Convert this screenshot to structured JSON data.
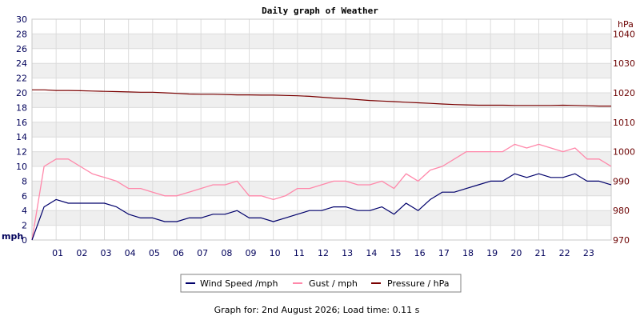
{
  "chart_data": {
    "type": "line",
    "title": "Daily graph of Weather",
    "left_axis": {
      "unit": "mph",
      "range": [
        0,
        30
      ],
      "ticks": [
        "0",
        "2",
        "4",
        "6",
        "8",
        "10",
        "12",
        "14",
        "16",
        "18",
        "20",
        "22",
        "24",
        "26",
        "28",
        "30"
      ]
    },
    "right_axis": {
      "unit": "hPa",
      "range": [
        970,
        1045
      ],
      "ticks": [
        "970",
        "980",
        "990",
        "1000",
        "1010",
        "1020",
        "1030",
        "1040"
      ]
    },
    "x_axis": {
      "range": [
        0,
        24
      ],
      "ticks": [
        "01",
        "02",
        "03",
        "04",
        "05",
        "06",
        "07",
        "08",
        "09",
        "10",
        "11",
        "12",
        "13",
        "14",
        "15",
        "16",
        "17",
        "18",
        "19",
        "20",
        "21",
        "22",
        "23"
      ]
    },
    "grid": true,
    "legend_position": "bottom",
    "x": [
      0,
      0.5,
      1,
      1.5,
      2,
      2.5,
      3,
      3.5,
      4,
      4.5,
      5,
      5.5,
      6,
      6.5,
      7,
      7.5,
      8,
      8.5,
      9,
      9.5,
      10,
      10.5,
      11,
      11.5,
      12,
      12.5,
      13,
      13.5,
      14,
      14.5,
      15,
      15.5,
      16,
      16.5,
      17,
      17.5,
      18,
      18.5,
      19,
      19.5,
      20,
      20.5,
      21,
      21.5,
      22,
      22.5,
      23,
      23.5,
      24
    ],
    "series": [
      {
        "name": "Wind Speed /mph",
        "color": "#00006b",
        "axis": "left",
        "values": [
          0,
          4.5,
          5.5,
          5,
          5,
          5,
          5,
          4.5,
          3.5,
          3,
          3,
          2.5,
          2.5,
          3,
          3,
          3.5,
          3.5,
          4,
          3,
          3,
          2.5,
          3,
          3.5,
          4,
          4,
          4.5,
          4.5,
          4,
          4,
          4.5,
          3.5,
          5,
          4,
          5.5,
          6.5,
          6.5,
          7,
          7.5,
          8,
          8,
          9,
          8.5,
          9,
          8.5,
          8.5,
          9,
          8,
          8,
          7.5
        ]
      },
      {
        "name": "Gust / mph",
        "color": "#ff88aa",
        "axis": "left",
        "values": [
          0,
          10,
          11,
          11,
          10,
          9,
          8.5,
          8,
          7,
          7,
          6.5,
          6,
          6,
          6.5,
          7,
          7.5,
          7.5,
          8,
          6,
          6,
          5.5,
          6,
          7,
          7,
          7.5,
          8,
          8,
          7.5,
          7.5,
          8,
          7,
          9,
          8,
          9.5,
          10,
          11,
          12,
          12,
          12,
          12,
          13,
          12.5,
          13,
          12.5,
          12,
          12.5,
          11,
          11,
          10
        ]
      },
      {
        "name": "Pressure / hPa",
        "color": "#7a0000",
        "axis": "right",
        "values": [
          1021,
          1021,
          1020.8,
          1020.8,
          1020.7,
          1020.6,
          1020.5,
          1020.4,
          1020.3,
          1020.2,
          1020.2,
          1020,
          1019.8,
          1019.6,
          1019.5,
          1019.5,
          1019.4,
          1019.3,
          1019.3,
          1019.2,
          1019.2,
          1019.1,
          1019,
          1018.8,
          1018.5,
          1018.2,
          1018,
          1017.7,
          1017.4,
          1017.2,
          1017,
          1016.8,
          1016.6,
          1016.4,
          1016.2,
          1016,
          1015.9,
          1015.8,
          1015.8,
          1015.8,
          1015.7,
          1015.7,
          1015.7,
          1015.7,
          1015.8,
          1015.7,
          1015.6,
          1015.5,
          1015.5
        ]
      }
    ]
  },
  "footer": "Graph for: 2nd August 2026; Load time: 0.11 s"
}
